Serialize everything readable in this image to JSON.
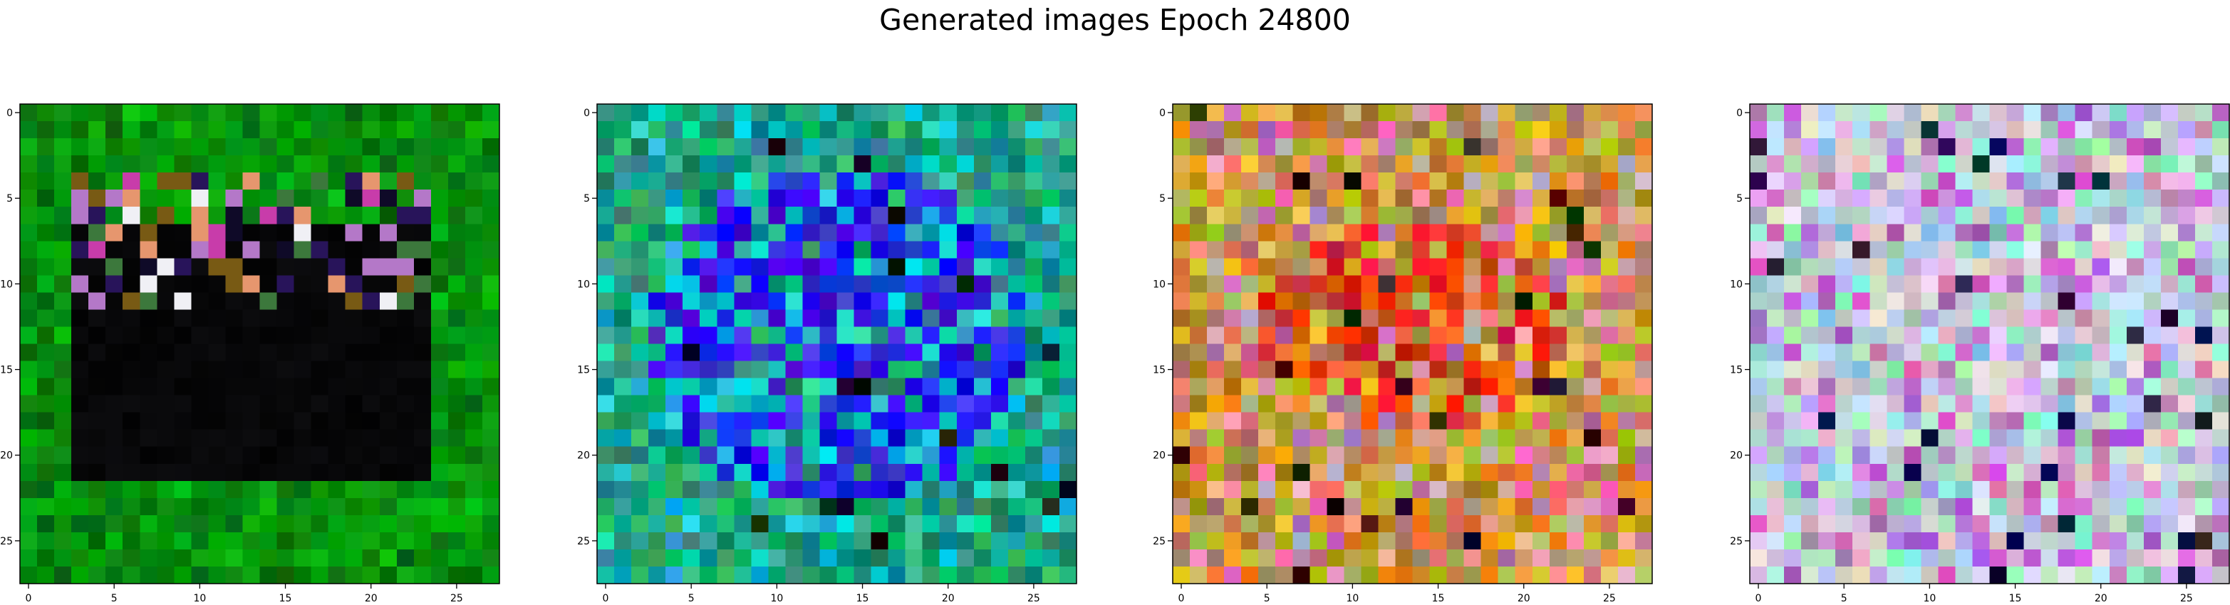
{
  "figure": {
    "title": "Generated images Epoch 24800"
  },
  "chart_data": [
    {
      "type": "heatmap",
      "rows": 28,
      "cols": 28,
      "xlim": [
        0,
        27
      ],
      "ylim": [
        27,
        0
      ],
      "xticks": [
        "0",
        "5",
        "10",
        "15",
        "20",
        "25"
      ],
      "yticks": [
        "0",
        "5",
        "10",
        "15",
        "20",
        "25"
      ],
      "grid": false,
      "style": "green-frame",
      "palette": {
        "base": "#0a8a1a",
        "center": "#020202",
        "accent": "#ffffff"
      },
      "dark_region": {
        "rows": [
          7,
          21
        ],
        "cols": [
          3,
          23
        ]
      },
      "speckle_rows": [
        4,
        11
      ]
    },
    {
      "type": "heatmap",
      "rows": 28,
      "cols": 28,
      "xlim": [
        0,
        27
      ],
      "ylim": [
        27,
        0
      ],
      "xticks": [
        "0",
        "5",
        "10",
        "15",
        "20",
        "25"
      ],
      "yticks": [
        "0",
        "5",
        "10",
        "15",
        "20",
        "25"
      ],
      "grid": false,
      "style": "blue-center",
      "palette": {
        "outer": "#1aa07a",
        "center": "#2a1fe6",
        "accent": "#11c0c8"
      }
    },
    {
      "type": "heatmap",
      "rows": 28,
      "cols": 28,
      "xlim": [
        0,
        27
      ],
      "ylim": [
        27,
        0
      ],
      "xticks": [
        "0",
        "5",
        "10",
        "15",
        "20",
        "25"
      ],
      "yticks": [
        "0",
        "5",
        "10",
        "15",
        "20",
        "25"
      ],
      "grid": false,
      "style": "warm-noise",
      "palette": {
        "base": "#c89a3a",
        "hot": "#e0401a",
        "cool": "#d08a9a"
      }
    },
    {
      "type": "heatmap",
      "rows": 28,
      "cols": 28,
      "xlim": [
        0,
        27
      ],
      "ylim": [
        27,
        0
      ],
      "xticks": [
        "0",
        "5",
        "10",
        "15",
        "20",
        "25"
      ],
      "yticks": [
        "0",
        "5",
        "10",
        "15",
        "20",
        "25"
      ],
      "grid": false,
      "style": "pastel-noise",
      "palette": {
        "base": "#cfc8e0",
        "accent1": "#9ae0c8",
        "accent2": "#c070c8"
      }
    }
  ]
}
